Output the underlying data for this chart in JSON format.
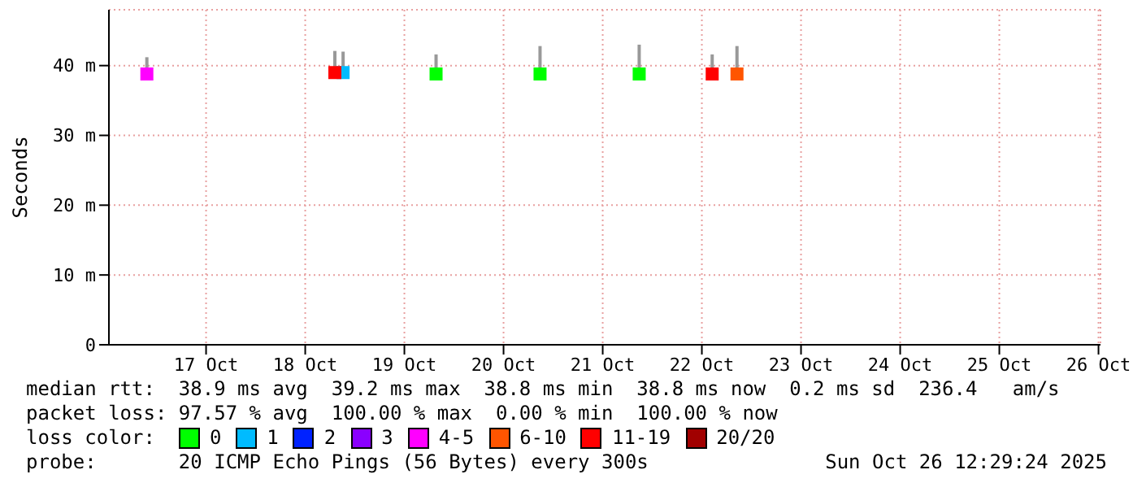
{
  "chart_data": {
    "type": "scatter",
    "ylabel": "Seconds",
    "legend_title": "loss color:",
    "legend": "bottom",
    "marker": "square",
    "grid": true,
    "xlim": [
      "2025-10-16T12:29",
      "2025-10-26T12:29"
    ],
    "xticks": [
      {
        "value": "2025-10-17T12:00",
        "label": "17 Oct"
      },
      {
        "value": "2025-10-18T12:00",
        "label": "18 Oct"
      },
      {
        "value": "2025-10-19T12:00",
        "label": "19 Oct"
      },
      {
        "value": "2025-10-20T12:00",
        "label": "20 Oct"
      },
      {
        "value": "2025-10-21T12:00",
        "label": "21 Oct"
      },
      {
        "value": "2025-10-22T12:00",
        "label": "22 Oct"
      },
      {
        "value": "2025-10-23T12:00",
        "label": "23 Oct"
      },
      {
        "value": "2025-10-24T12:00",
        "label": "24 Oct"
      },
      {
        "value": "2025-10-25T12:00",
        "label": "25 Oct"
      },
      {
        "value": "2025-10-26T12:00",
        "label": "26 Oct"
      }
    ],
    "ylim": [
      0,
      48
    ],
    "yticks": [
      0,
      {
        "value": 10,
        "label": "10 m"
      },
      {
        "value": 20,
        "label": "20 m"
      },
      {
        "value": 30,
        "label": "30 m"
      },
      {
        "value": 40,
        "label": "40 m"
      }
    ],
    "series": [
      {
        "name": "0",
        "color": "#00ff00",
        "x": [
          "2025-10-19T19:40",
          "2025-10-20T20:50",
          "2025-10-21T20:50"
        ],
        "values": [
          38.8,
          38.8,
          38.8
        ],
        "errors": [
          [
            38.8,
            41.6
          ],
          [
            38.8,
            42.8
          ],
          [
            38.8,
            43
          ]
        ]
      },
      {
        "name": "1",
        "color": "#00bbff",
        "x": [
          "2025-10-18T21:10"
        ],
        "values": [
          39
        ],
        "errors": [
          [
            38.8,
            42
          ]
        ]
      },
      {
        "name": "2",
        "color": "#0022ff"
      },
      {
        "name": "3",
        "color": "#8a00ff"
      },
      {
        "name": "4-5",
        "color": "#ff00ff",
        "x": [
          "2025-10-16T21:40"
        ],
        "values": [
          38.8
        ],
        "errors": [
          [
            38.8,
            41.2
          ]
        ]
      },
      {
        "name": "6-10",
        "color": "#ff5500",
        "x": [
          "2025-10-22T20:30"
        ],
        "values": [
          38.8
        ],
        "errors": [
          [
            38.8,
            42.8
          ]
        ]
      },
      {
        "name": "11-19",
        "color": "#ff0000",
        "x": [
          "2025-10-18T19:10",
          "2025-10-22T14:30"
        ],
        "values": [
          39,
          38.8
        ],
        "errors": [
          [
            38.8,
            42.1
          ],
          [
            38.8,
            41.6
          ]
        ]
      },
      {
        "name": "20/20",
        "color": "#a10000"
      }
    ],
    "annotations": [
      "median rtt:  38.9 ms avg  39.2 ms max  38.8 ms min  38.8 ms now  0.2 ms sd  236.4   am/s",
      "packet loss: 97.57 % avg  100.00 % max  0.00 % min  100.00 % now",
      "probe:       20 ICMP Echo Pings (56 Bytes) every 300s",
      "Sun Oct 26 12:29:24 2025"
    ]
  }
}
